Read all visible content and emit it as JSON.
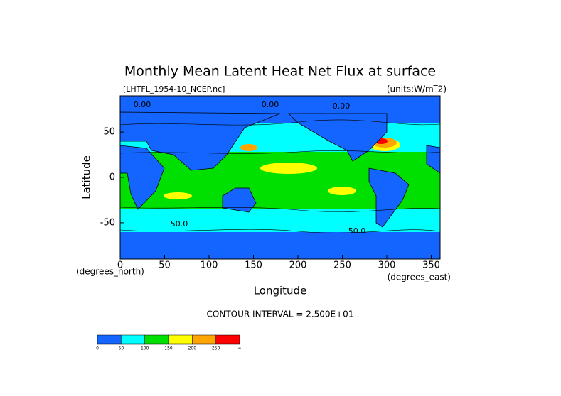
{
  "chart_data": {
    "type": "contour-map",
    "title": "Monthly Mean Latent Heat Net Flux at surface",
    "subtitle_left": "[LHTFL_1954-10_NCEP.nc]",
    "subtitle_right": "(units:W/m‾2)",
    "x_label": "Longitude",
    "y_label": "Latitude",
    "x_unit": "(degrees_east)",
    "y_unit": "(degrees_north)",
    "xlim": [
      0,
      360
    ],
    "xticks": [
      0,
      50,
      100,
      150,
      200,
      250,
      300,
      350
    ],
    "ylim": [
      -90,
      90
    ],
    "yticks": [
      -50,
      0,
      50
    ],
    "contour_labels": [
      "0.00",
      "0.00",
      "0.00",
      "50.0",
      "50.0"
    ],
    "note": "CONTOUR INTERVAL = 2.500E+01",
    "colorbar_colors": [
      "#1464ff",
      "#00ffff",
      "#00e000",
      "#ffff00",
      "#ffa500",
      "#ff0000"
    ],
    "colorbar_labels": [
      "0",
      "50",
      "100",
      "150",
      "200",
      "250",
      "∞"
    ]
  }
}
